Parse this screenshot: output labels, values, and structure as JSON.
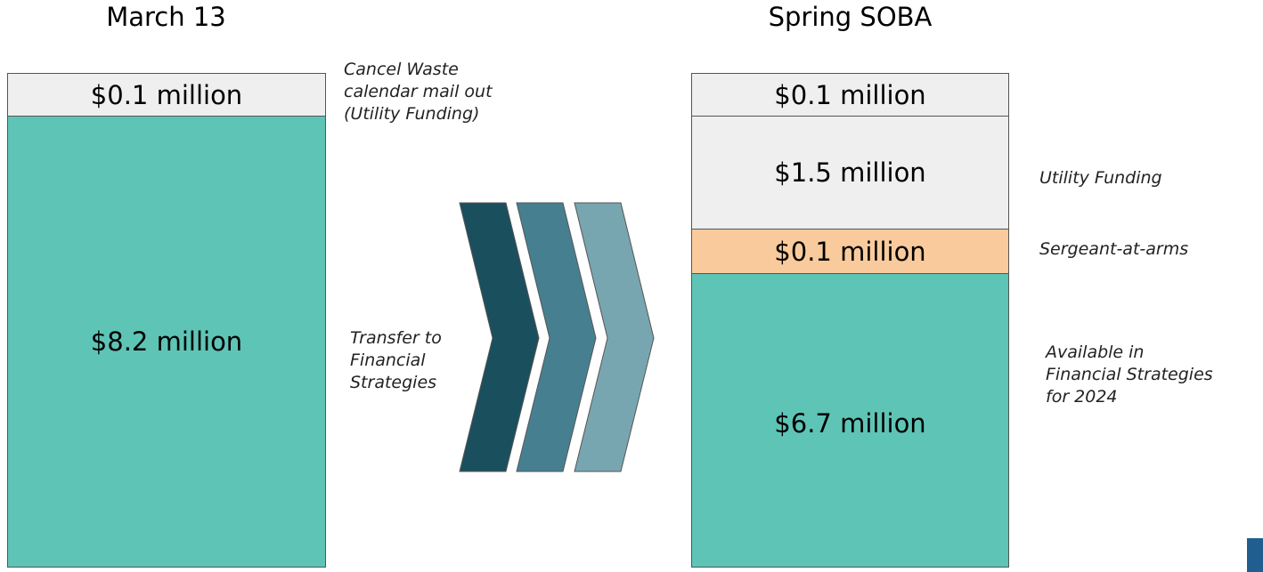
{
  "left": {
    "title": "March 13",
    "blocks": [
      "$0.1 million",
      "$8.2 million"
    ],
    "note_top": [
      "Cancel Waste",
      "calendar mail out",
      "(Utility Funding)"
    ],
    "note_transfer": [
      "Transfer to",
      "Financial",
      "Strategies"
    ]
  },
  "right": {
    "title": "Spring SOBA",
    "blocks": [
      "$0.1 million",
      "$1.5 million",
      "$0.1 million",
      "$6.7 million"
    ],
    "notes": [
      [
        "Utility Funding"
      ],
      [
        "Sergeant-at-arms"
      ],
      [
        "Available in",
        "Financial Strategies",
        "for 2024"
      ]
    ]
  }
}
